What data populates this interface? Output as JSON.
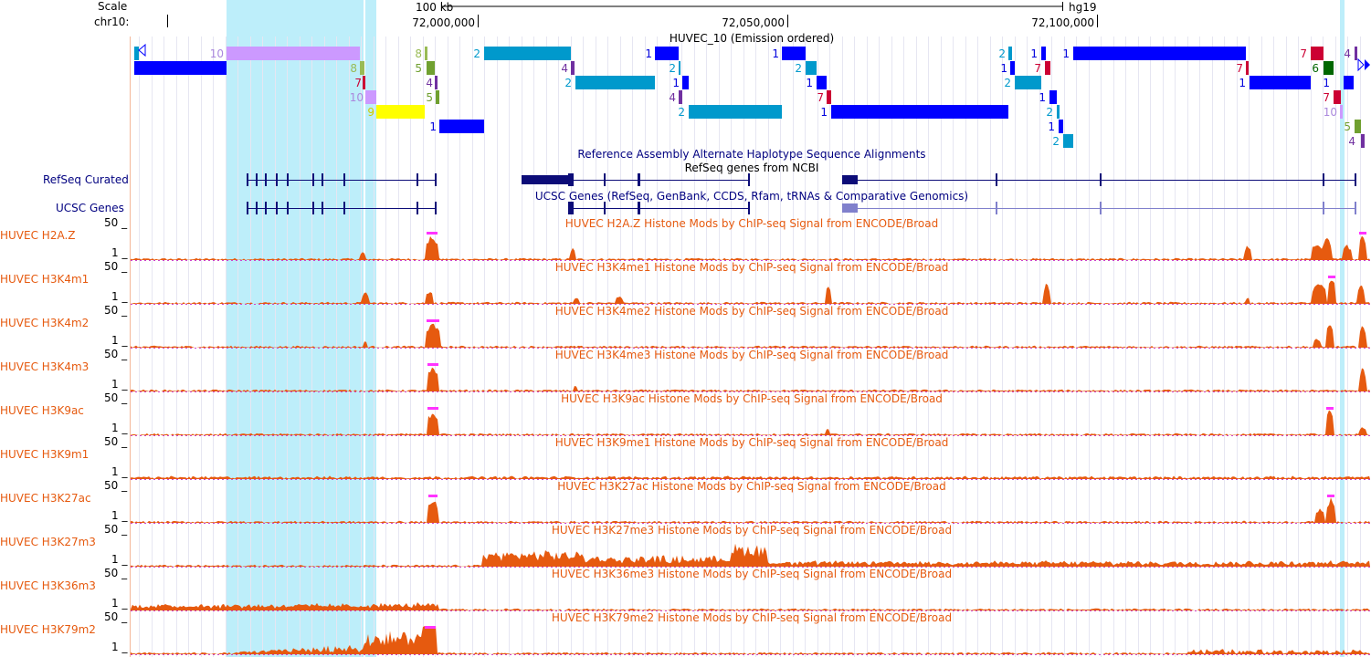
{
  "header": {
    "scale_label": "Scale",
    "chrom_label": "chr10:",
    "scale_bar_text": "100 kb",
    "assembly": "hg19",
    "ticks": [
      "72,000,000",
      "72,050,000",
      "72,100,000"
    ]
  },
  "colors": {
    "segway": {
      "1": "#0000ff",
      "2": "#0099cc",
      "4": "#7030a0",
      "5": "#70a030",
      "6": "#006600",
      "7": "#cc0033",
      "8": "#99bb55",
      "9": "#ffff00",
      "10": "#cc99ff"
    },
    "label_colors": {
      "1": "#0000dd",
      "2": "#0099cc",
      "4": "#7030a0",
      "5": "#70a030",
      "6": "#006600",
      "7": "#cc0033",
      "8": "#99bb55",
      "9": "#cccc00",
      "10": "#aa88dd"
    },
    "highlight": "#bdeefa",
    "signal": "#e65a0f",
    "signal_clip": "#ff33ff",
    "gene": "#0c0c78",
    "track_label_blue": "#000080",
    "track_label_orange": "#e65a0f"
  },
  "tracks": {
    "segway_title": "HUVEC_10 (Emission ordered)",
    "alt_hap_title": "Reference Assembly Alternate Haplotype Sequence Alignments",
    "refseq_title": "RefSeq genes from NCBI",
    "refseq_label": "RefSeq Curated",
    "ucsc_title": "UCSC Genes (RefSeq, GenBank, CCDS, Rfam, tRNAs & Comparative Genomics)",
    "ucsc_label": "UCSC Genes"
  },
  "signal_tracks": [
    {
      "label": "HUVEC H2A.Z",
      "title": "HUVEC H2A.Z Histone Mods by ChIP-seq Signal from ENCODE/Broad",
      "ymax": "50 _",
      "ymin": "1 _"
    },
    {
      "label": "HUVEC H3K4m1",
      "title": "HUVEC H3K4me1 Histone Mods by ChIP-seq Signal from ENCODE/Broad",
      "ymax": "50 _",
      "ymin": "1 _"
    },
    {
      "label": "HUVEC H3K4m2",
      "title": "HUVEC H3K4me2 Histone Mods by ChIP-seq Signal from ENCODE/Broad",
      "ymax": "50 _",
      "ymin": "1 _"
    },
    {
      "label": "HUVEC H3K4m3",
      "title": "HUVEC H3K4me3 Histone Mods by ChIP-seq Signal from ENCODE/Broad",
      "ymax": "50 _",
      "ymin": "1 _"
    },
    {
      "label": "HUVEC H3K9ac",
      "title": "HUVEC H3K9ac Histone Mods by ChIP-seq Signal from ENCODE/Broad",
      "ymax": "50 _",
      "ymin": "1 _"
    },
    {
      "label": "HUVEC H3K9m1",
      "title": "HUVEC H3K9me1 Histone Mods by ChIP-seq Signal from ENCODE/Broad",
      "ymax": "50 _",
      "ymin": "1 _"
    },
    {
      "label": "HUVEC H3K27ac",
      "title": "HUVEC H3K27ac Histone Mods by ChIP-seq Signal from ENCODE/Broad",
      "ymax": "50 _",
      "ymin": "1 _"
    },
    {
      "label": "HUVEC H3K27m3",
      "title": "HUVEC H3K27me3 Histone Mods by ChIP-seq Signal from ENCODE/Broad",
      "ymax": "50 _",
      "ymin": "1 _"
    },
    {
      "label": "HUVEC H3K36m3",
      "title": "HUVEC H3K36me3 Histone Mods by ChIP-seq Signal from ENCODE/Broad",
      "ymax": "50 _",
      "ymin": "1 _"
    },
    {
      "label": "HUVEC H3K79m2",
      "title": "HUVEC H3K79me2 Histone Mods by ChIP-seq Signal from ENCODE/Broad",
      "ymax": "50 _",
      "ymin": "1 _"
    }
  ],
  "segway_states": [
    {
      "state": "2",
      "label": "2"
    },
    {
      "state": "1",
      "label": "1"
    },
    {
      "state": "10",
      "label": "10"
    },
    {
      "state": "8",
      "label": "8"
    },
    {
      "state": "7",
      "label": "7"
    },
    {
      "state": "9",
      "label": "9"
    },
    {
      "state": "5",
      "label": "5"
    },
    {
      "state": "4",
      "label": "4"
    },
    {
      "state": "6",
      "label": "6"
    }
  ]
}
